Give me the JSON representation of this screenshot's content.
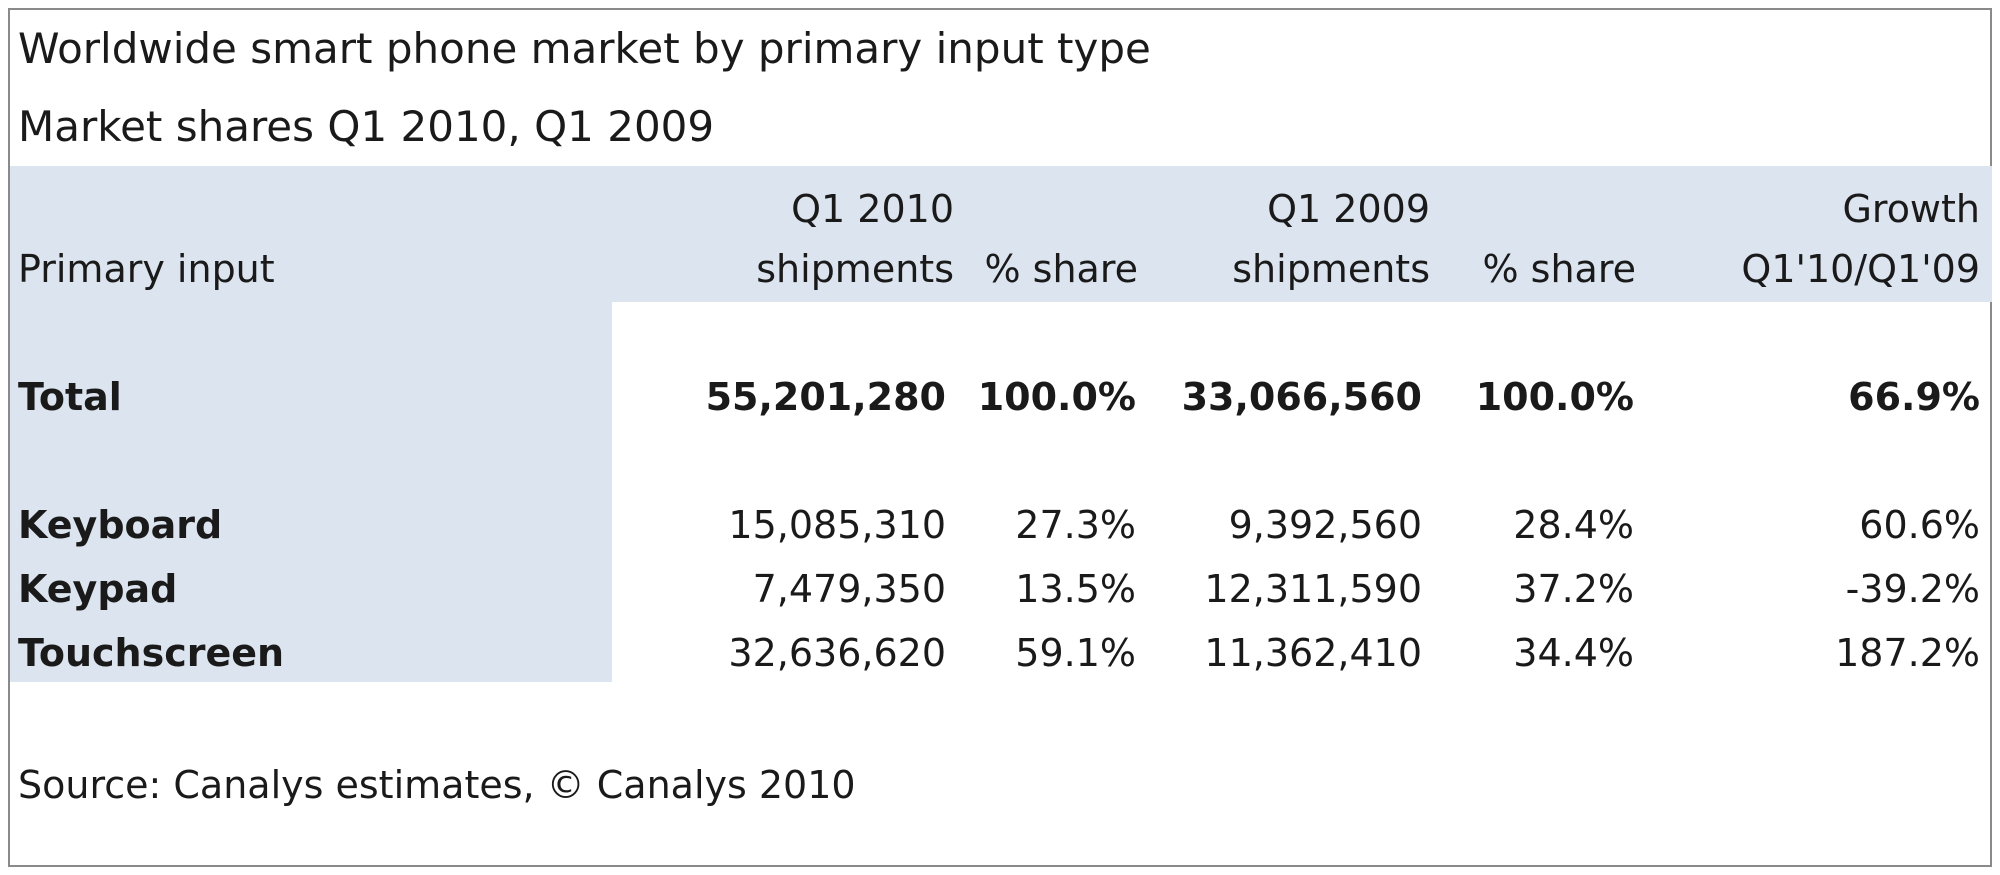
{
  "title": "Worldwide smart phone market by primary input type",
  "subtitle": "Market shares Q1 2010, Q1 2009",
  "colors": {
    "band": "#dce4ef",
    "border": "#8a8a8a",
    "text": "#1a1a1a"
  },
  "chart_data": {
    "type": "table",
    "columns": [
      {
        "line1": "",
        "line2": "Primary input"
      },
      {
        "line1": "Q1 2010",
        "line2": "shipments"
      },
      {
        "line1": "",
        "line2": "% share"
      },
      {
        "line1": "Q1 2009",
        "line2": "shipments"
      },
      {
        "line1": "",
        "line2": "% share"
      },
      {
        "line1": "Growth",
        "line2": "Q1'10/Q1'09"
      }
    ],
    "rows": [
      {
        "label": "Total",
        "q1_2010_shipments": "55,201,280",
        "q1_2010_share": "100.0%",
        "q1_2009_shipments": "33,066,560",
        "q1_2009_share": "100.0%",
        "growth": "66.9%"
      },
      {
        "label": "Keyboard",
        "q1_2010_shipments": "15,085,310",
        "q1_2010_share": "27.3%",
        "q1_2009_shipments": "9,392,560",
        "q1_2009_share": "28.4%",
        "growth": "60.6%"
      },
      {
        "label": "Keypad",
        "q1_2010_shipments": "7,479,350",
        "q1_2010_share": "13.5%",
        "q1_2009_shipments": "12,311,590",
        "q1_2009_share": "37.2%",
        "growth": "-39.2%"
      },
      {
        "label": "Touchscreen",
        "q1_2010_shipments": "32,636,620",
        "q1_2010_share": "59.1%",
        "q1_2009_shipments": "11,362,410",
        "q1_2009_share": "34.4%",
        "growth": "187.2%"
      }
    ]
  },
  "source": "Source: Canalys estimates, © Canalys 2010"
}
